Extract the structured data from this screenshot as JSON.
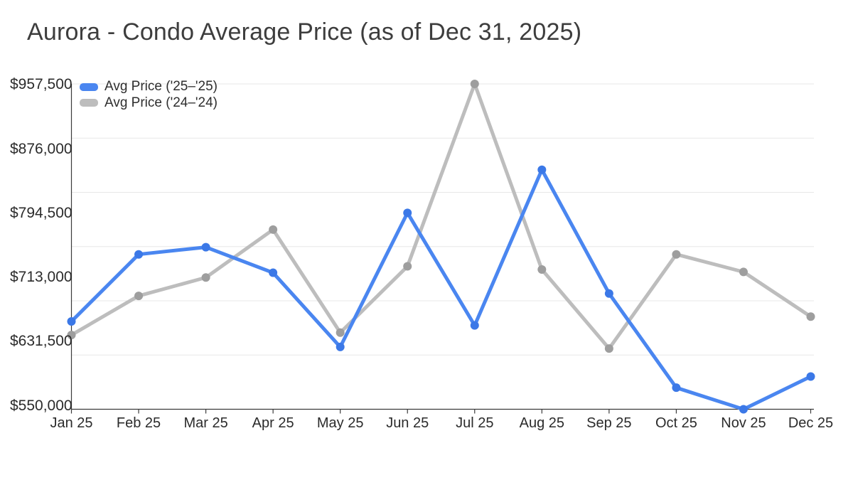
{
  "chart_data": {
    "type": "line",
    "title": "Aurora - Condo Average Price (as of Dec 31, 2025)",
    "categories": [
      "Jan 25",
      "Feb 25",
      "Mar 25",
      "Apr 25",
      "May 25",
      "Jun 25",
      "Jul 25",
      "Aug 25",
      "Sep 25",
      "Oct 25",
      "Nov 25",
      "Dec 25"
    ],
    "series": [
      {
        "name": "Avg Price ('25–'25)",
        "color": "#4a86f0",
        "marker_color": "#3b78e7",
        "values": [
          660000,
          744000,
          753000,
          721000,
          628000,
          796000,
          655000,
          850000,
          695000,
          577000,
          550000,
          591000
        ]
      },
      {
        "name": "Avg Price ('24–'24)",
        "color": "#bdbdbd",
        "marker_color": "#9e9e9e",
        "values": [
          643000,
          692000,
          715000,
          775000,
          646000,
          729000,
          957500,
          725000,
          626000,
          744000,
          722000,
          666000
        ]
      }
    ],
    "y_ticks": [
      550000,
      631500,
      713000,
      794500,
      876000,
      957500
    ],
    "y_tick_labels": [
      "$550,000",
      "$631,500",
      "$713,000",
      "$794,500",
      "$876,000",
      "$957,500"
    ],
    "ylim": [
      550000,
      957500
    ],
    "xlabel": "",
    "ylabel": "",
    "grid": true,
    "gridline_count": 7,
    "legend_position": "top-left-inside",
    "colors": {
      "background": "#ffffff",
      "gridline": "#e7e7e7",
      "axis": "#3a3a3a",
      "title_text": "#3d3d3d",
      "tick_text": "#2b2b2b"
    }
  }
}
